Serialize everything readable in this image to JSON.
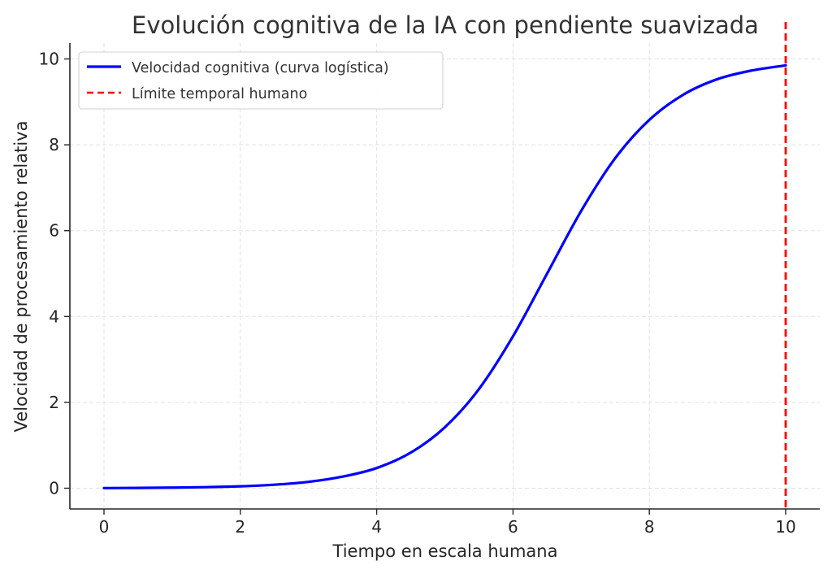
{
  "chart_data": {
    "type": "line",
    "title": "Evolución cognitiva de la IA con pendiente suavizada",
    "xlabel": "Tiempo en escala humana",
    "ylabel": "Velocidad de procesamiento relativa",
    "xlim": [
      -0.5,
      10.5
    ],
    "ylim": [
      -0.5,
      10.3
    ],
    "xticks": [
      0,
      2,
      4,
      6,
      8,
      10
    ],
    "yticks": [
      0,
      2,
      4,
      6,
      8,
      10
    ],
    "xtick_labels": [
      "0",
      "2",
      "4",
      "6",
      "8",
      "10"
    ],
    "ytick_labels": [
      "0",
      "2",
      "4",
      "6",
      "8",
      "10"
    ],
    "grid": true,
    "legend_position": "upper left",
    "series": [
      {
        "name": "Velocidad cognitiva (curva logística)",
        "color": "#0000ff",
        "style": "solid",
        "x": [
          0,
          0.5,
          1,
          1.5,
          2,
          2.5,
          3,
          3.5,
          4,
          4.5,
          5,
          5.5,
          6,
          6.5,
          7,
          7.5,
          8,
          8.5,
          9,
          9.5,
          10
        ],
        "values": [
          0.004,
          0.007,
          0.014,
          0.025,
          0.045,
          0.082,
          0.148,
          0.27,
          0.47,
          0.83,
          1.42,
          2.31,
          3.54,
          5.0,
          6.46,
          7.69,
          8.58,
          9.17,
          9.53,
          9.73,
          9.85
        ]
      },
      {
        "name": "Límite temporal humano",
        "color": "#ff0000",
        "style": "dashed",
        "type": "vline",
        "x": 10
      }
    ]
  },
  "legend": {
    "items": [
      {
        "label": "Velocidad cognitiva (curva logística)"
      },
      {
        "label": "Límite temporal humano"
      }
    ]
  }
}
